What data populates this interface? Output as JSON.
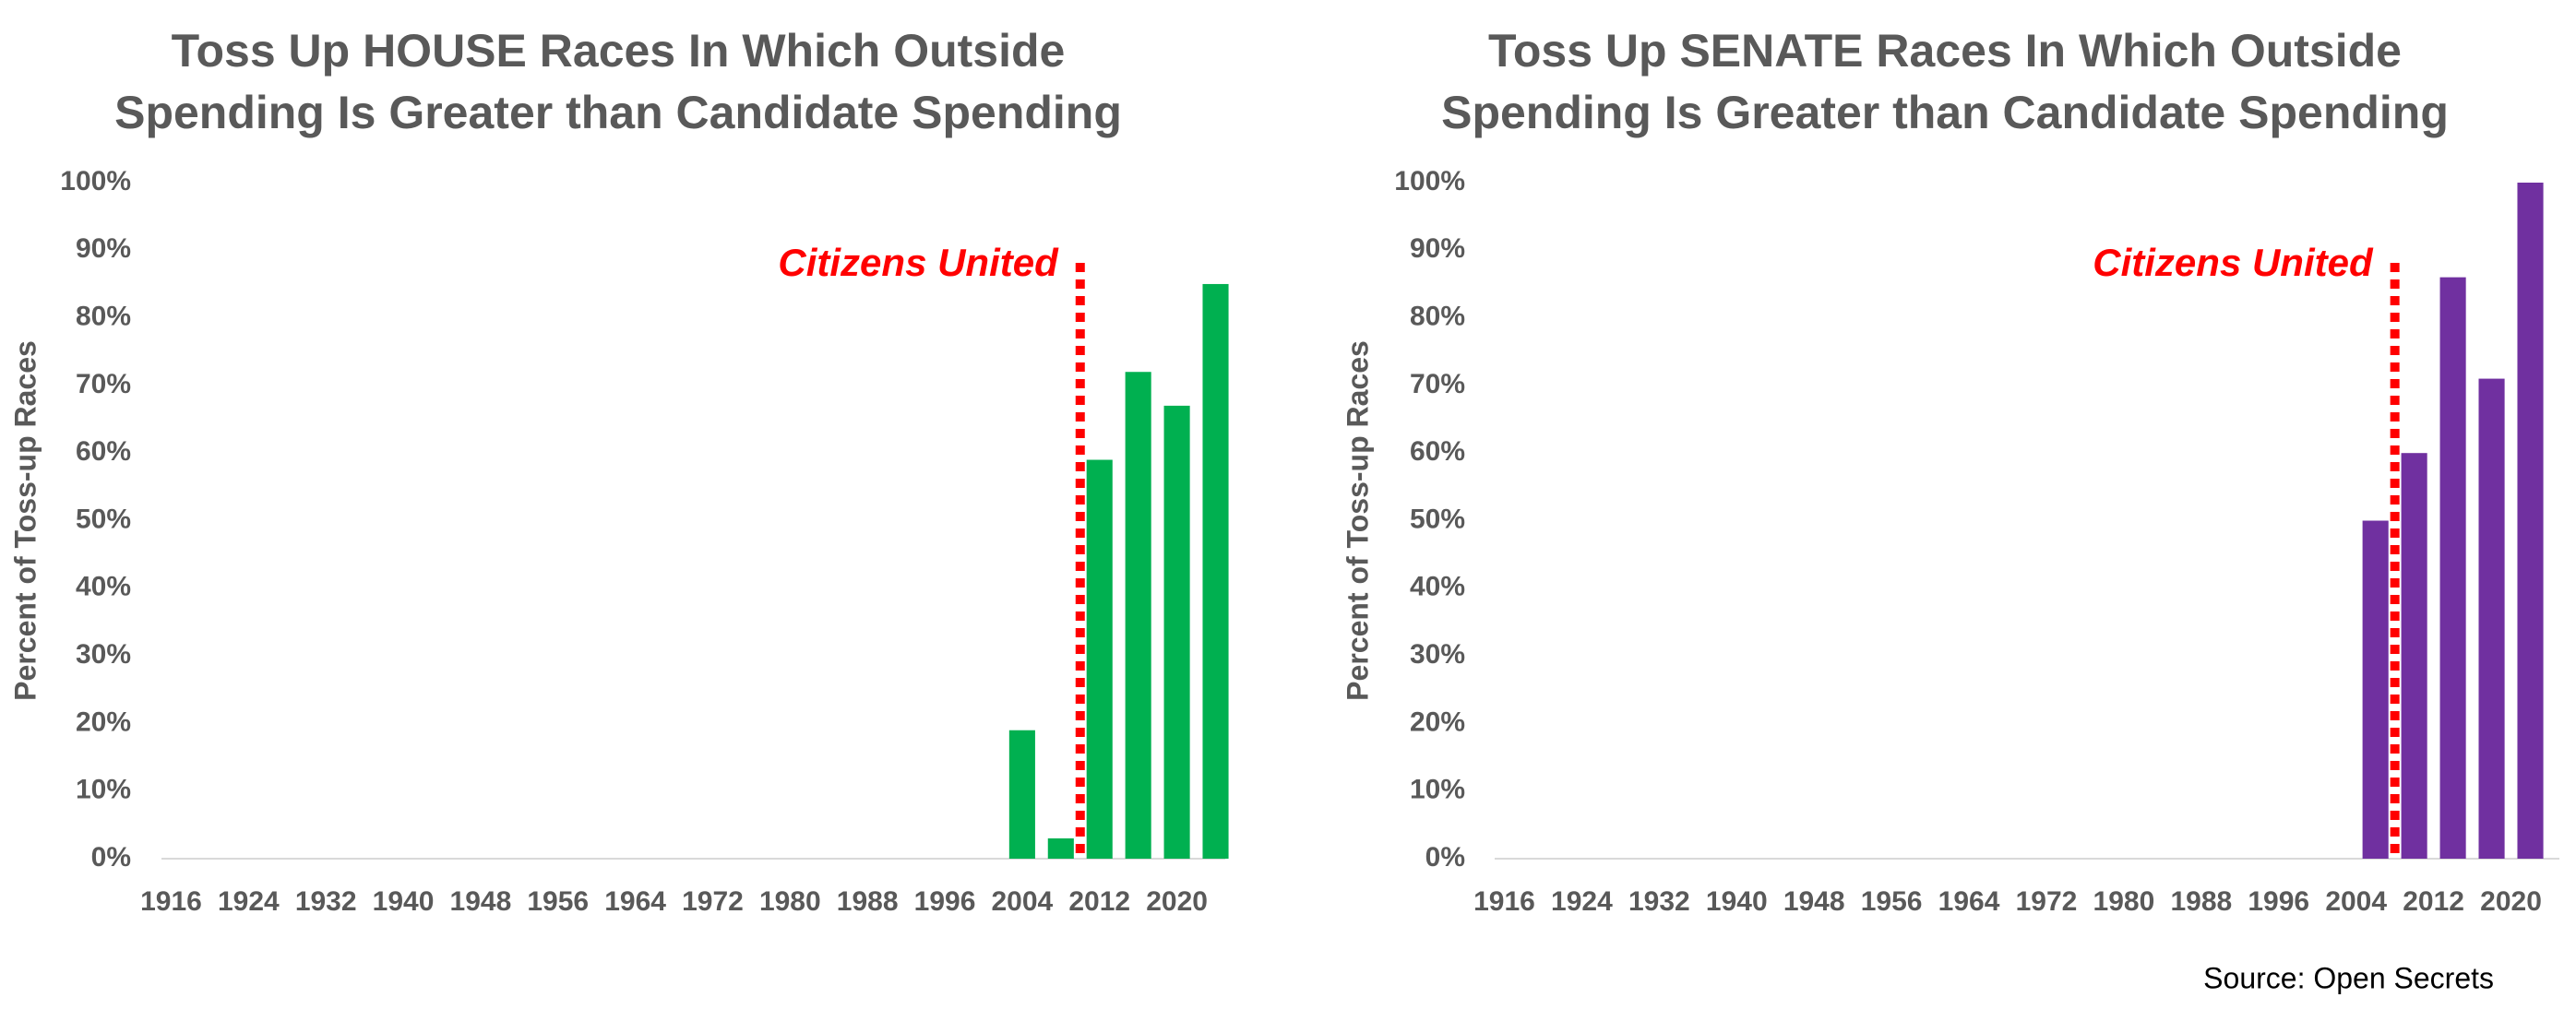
{
  "chart_data": [
    {
      "type": "bar",
      "title": [
        "Toss Up HOUSE Races In Which Outside",
        "Spending Is Greater than Candidate Spending"
      ],
      "y_label": "Percent of Toss-up Races",
      "color": "#00b050",
      "categories": [
        "1916",
        null,
        null,
        null,
        "1924",
        null,
        null,
        null,
        "1932",
        null,
        null,
        null,
        "1940",
        null,
        null,
        null,
        "1948",
        null,
        null,
        null,
        "1956",
        null,
        null,
        null,
        "1964",
        null,
        null,
        null,
        "1972",
        null,
        null,
        null,
        "1980",
        null,
        null,
        null,
        "1988",
        null,
        null,
        null,
        "1996",
        null,
        null,
        null,
        "2004",
        null,
        null,
        null,
        "2012",
        null,
        null,
        null,
        "2020",
        null,
        null
      ],
      "values": [
        null,
        null,
        null,
        null,
        null,
        null,
        null,
        null,
        null,
        null,
        null,
        null,
        null,
        null,
        null,
        null,
        null,
        null,
        null,
        null,
        null,
        null,
        null,
        null,
        null,
        null,
        null,
        null,
        null,
        null,
        null,
        null,
        null,
        null,
        null,
        null,
        null,
        null,
        null,
        null,
        null,
        null,
        null,
        null,
        19,
        null,
        3,
        null,
        59,
        null,
        72,
        null,
        67,
        null,
        85
      ],
      "ylim": [
        0,
        100
      ],
      "yticks": [
        {
          "value": 0,
          "label": "0%"
        },
        {
          "value": 10,
          "label": "10%"
        },
        {
          "value": 20,
          "label": "20%"
        },
        {
          "value": 30,
          "label": "30%"
        },
        {
          "value": 40,
          "label": "40%"
        },
        {
          "value": 50,
          "label": "50%"
        },
        {
          "value": 60,
          "label": "60%"
        },
        {
          "value": 70,
          "label": "70%"
        },
        {
          "value": 80,
          "label": "80%"
        },
        {
          "value": 90,
          "label": "90%"
        },
        {
          "value": 100,
          "label": "100%"
        }
      ],
      "grid": false,
      "annotation": {
        "text": "Citizens United",
        "x": 2010,
        "color": "#ff0000"
      }
    },
    {
      "type": "bar",
      "title": [
        "Toss Up SENATE Races In Which Outside",
        "Spending Is Greater than Candidate Spending"
      ],
      "y_label": "Percent of Toss-up Races",
      "color": "#7030a0",
      "categories": [
        "1916",
        null,
        null,
        null,
        "1924",
        null,
        null,
        null,
        "1932",
        null,
        null,
        null,
        "1940",
        null,
        null,
        null,
        "1948",
        null,
        null,
        null,
        "1956",
        null,
        null,
        null,
        "1964",
        null,
        null,
        null,
        "1972",
        null,
        null,
        null,
        "1980",
        null,
        null,
        null,
        "1988",
        null,
        null,
        null,
        "1996",
        null,
        null,
        null,
        "2004",
        null,
        null,
        null,
        "2012",
        null,
        null,
        null,
        "2020",
        null,
        null
      ],
      "values": [
        null,
        null,
        null,
        null,
        null,
        null,
        null,
        null,
        null,
        null,
        null,
        null,
        null,
        null,
        null,
        null,
        null,
        null,
        null,
        null,
        null,
        null,
        null,
        null,
        null,
        null,
        null,
        null,
        null,
        null,
        null,
        null,
        null,
        null,
        null,
        null,
        null,
        null,
        null,
        null,
        null,
        null,
        null,
        null,
        null,
        50,
        null,
        60,
        null,
        86,
        null,
        71,
        null,
        100,
        null
      ],
      "ylim": [
        0,
        100
      ],
      "yticks": [
        {
          "value": 0,
          "label": "0%"
        },
        {
          "value": 10,
          "label": "10%"
        },
        {
          "value": 20,
          "label": "20%"
        },
        {
          "value": 30,
          "label": "30%"
        },
        {
          "value": 40,
          "label": "40%"
        },
        {
          "value": 50,
          "label": "50%"
        },
        {
          "value": 60,
          "label": "60%"
        },
        {
          "value": 70,
          "label": "70%"
        },
        {
          "value": 80,
          "label": "80%"
        },
        {
          "value": 90,
          "label": "90%"
        },
        {
          "value": 100,
          "label": "100%"
        }
      ],
      "grid": false,
      "annotation": {
        "text": "Citizens United",
        "x": 2008,
        "color": "#ff0000"
      }
    }
  ],
  "source": "Source: Open Secrets"
}
